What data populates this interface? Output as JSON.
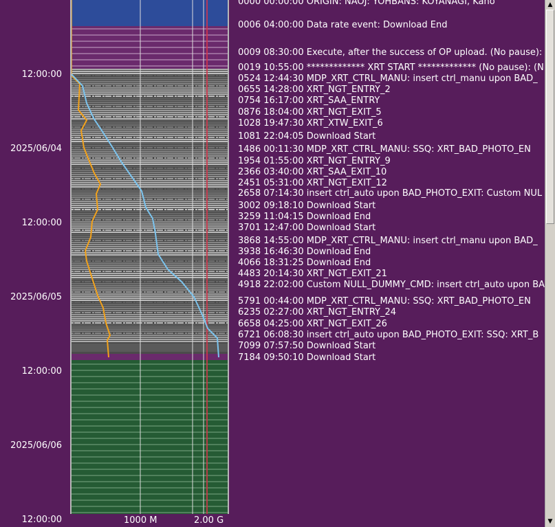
{
  "time_axis": {
    "labels": [
      "12:00:00",
      "2025/06/04",
      "12:00:00",
      "2025/06/05",
      "12:00:00",
      "2025/06/06",
      "12:00:00"
    ]
  },
  "x_axis": {
    "labels": [
      "1000 M",
      "2.00 G"
    ]
  },
  "plot_colors": {
    "upload_band": "#2d4c9a",
    "future_band": "#255b34",
    "executed_band": "#4b4b4b",
    "stripe": "#ffffff",
    "red_line": "#d8344a",
    "orange_trace": "#f2a21c",
    "blue_trace": "#7cc4ee"
  },
  "events": [
    "0000 00:00:00 ORIGIN: NAOJ: YOHBANS: KOYANAGI, Kano",
    "0006 04:00:00 Data rate event: Download End",
    "0009 08:30:00 Execute, after the success of OP upload. (No pause): *",
    "0019 10:55:00 ************* XRT START ************* (No pause):  (N",
    "0524 12:44:30 MDP_XRT_CTRL_MANU: insert ctrl_manu upon BAD_",
    "0655 14:28:00 XRT_NGT_ENTRY_2",
    "0754 16:17:00 XRT_SAA_ENTRY",
    "0876 18:04:00 XRT_NGT_EXIT_5",
    "1028 19:47:30 XRT_XTW_EXIT_6",
    "1081 22:04:05 Download Start",
    "1486 00:11:30 MDP_XRT_CTRL_MANU: SSQ: XRT_BAD_PHOTO_EN",
    "1954 01:55:00 XRT_NGT_ENTRY_9",
    "2366 03:40:00 XRT_SAA_EXIT_10",
    "2451 05:31:00 XRT_NGT_EXIT_12",
    "2658 07:14:30 insert ctrl_auto upon BAD_PHOTO_EXIT: Custom NUL",
    "3002 09:18:10 Download Start",
    "3259 11:04:15 Download End",
    "3701 12:47:00 Download Start",
    "3868 14:55:00 MDP_XRT_CTRL_MANU: insert ctrl_manu upon BAD_",
    "3938 16:46:30 Download End",
    "4066 18:31:25 Download End",
    "4483 20:14:30 XRT_NGT_EXIT_21",
    "4918 22:02:00 Custom NULL_DUMMY_CMD: insert ctrl_auto upon BA",
    "5791 00:44:00 MDP_XRT_CTRL_MANU: SSQ: XRT_BAD_PHOTO_EN",
    "6235 02:27:00 XRT_NGT_ENTRY_24",
    "6658 04:25:00 XRT_NGT_EXIT_26",
    "6721 06:08:30 insert ctrl_auto upon BAD_PHOTO_EXIT: SSQ: XRT_B",
    "7099 07:57:50 Download Start",
    "7184 09:50:10 Download Start"
  ],
  "scrollbar": {
    "up_arrow": "▲",
    "down_arrow": "▼"
  }
}
